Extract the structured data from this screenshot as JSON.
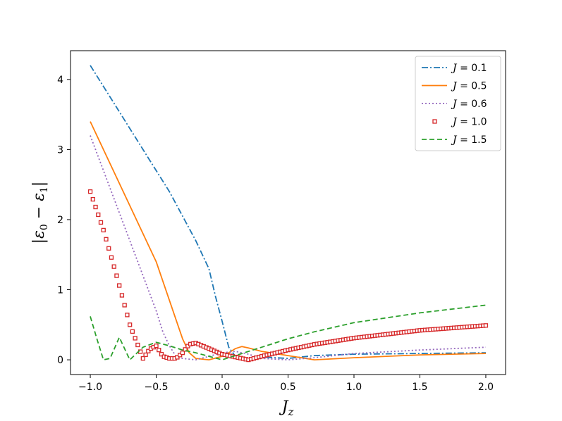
{
  "chart_data": {
    "type": "line",
    "xlabel": "J_z",
    "ylabel": "|ε0 − ε1|",
    "xlim": [
      -1.15,
      2.15
    ],
    "ylim": [
      -0.21,
      4.41
    ],
    "xticks": [
      -1.0,
      -0.5,
      0.0,
      0.5,
      1.0,
      1.5,
      2.0
    ],
    "xtick_labels": [
      "−1.0",
      "−0.5",
      "0.0",
      "0.5",
      "1.0",
      "1.5",
      "2.0"
    ],
    "yticks": [
      0,
      1,
      2,
      3,
      4
    ],
    "ytick_labels": [
      "0",
      "1",
      "2",
      "3",
      "4"
    ],
    "grid": false,
    "legend_position": "top-right",
    "series": [
      {
        "name": "J = 0.1",
        "legend_var": "J",
        "legend_value": "0.1",
        "color": "#1f77b4",
        "style": "dashdot",
        "x": [
          -1.0,
          -0.8,
          -0.6,
          -0.4,
          -0.2,
          -0.1,
          -0.05,
          0.0,
          0.05,
          0.1,
          0.2,
          0.3,
          0.5,
          0.7,
          1.0,
          1.5,
          2.0
        ],
        "y": [
          4.2,
          3.6,
          3.0,
          2.4,
          1.7,
          1.3,
          0.9,
          0.55,
          0.18,
          0.05,
          0.0,
          0.04,
          0.02,
          0.06,
          0.08,
          0.09,
          0.1
        ]
      },
      {
        "name": "J = 0.5",
        "legend_var": "J",
        "legend_value": "0.5",
        "color": "#ff7f0e",
        "style": "solid",
        "x": [
          -1.0,
          -0.5,
          -0.3,
          -0.25,
          -0.2,
          -0.1,
          0.0,
          0.05,
          0.1,
          0.15,
          0.2,
          0.3,
          0.5,
          0.7,
          1.0,
          1.5,
          2.0
        ],
        "y": [
          3.4,
          1.4,
          0.3,
          0.1,
          0.02,
          0.0,
          0.05,
          0.1,
          0.16,
          0.19,
          0.17,
          0.12,
          0.06,
          0.0,
          0.03,
          0.07,
          0.09
        ]
      },
      {
        "name": "J = 0.6",
        "legend_var": "J",
        "legend_value": "0.6",
        "color": "#9467bd",
        "style": "dotted",
        "x": [
          -1.0,
          -0.8,
          -0.6,
          -0.5,
          -0.45,
          -0.4,
          -0.35,
          -0.3,
          -0.2,
          -0.1,
          0.0,
          0.1,
          0.2,
          0.3,
          0.5,
          0.7,
          1.0,
          1.5,
          2.0
        ],
        "y": [
          3.2,
          2.2,
          1.2,
          0.7,
          0.4,
          0.2,
          0.05,
          0.02,
          0.0,
          0.05,
          0.1,
          0.12,
          0.08,
          0.02,
          0.0,
          0.03,
          0.09,
          0.14,
          0.18
        ]
      },
      {
        "name": "J = 1.0",
        "legend_var": "J",
        "legend_value": "1.0",
        "color": "#d62728",
        "style": "squares",
        "x": [
          -1.0,
          -0.9,
          -0.8,
          -0.7,
          -0.6,
          -0.55,
          -0.5,
          -0.45,
          -0.4,
          -0.35,
          -0.3,
          -0.25,
          -0.2,
          -0.1,
          0.0,
          0.1,
          0.2,
          0.3,
          0.5,
          0.7,
          1.0,
          1.5,
          2.0
        ],
        "y": [
          2.4,
          1.85,
          1.2,
          0.5,
          0.02,
          0.15,
          0.2,
          0.05,
          0.02,
          0.02,
          0.1,
          0.22,
          0.24,
          0.16,
          0.08,
          0.04,
          0.0,
          0.05,
          0.14,
          0.22,
          0.31,
          0.42,
          0.49
        ]
      },
      {
        "name": "J = 1.5",
        "legend_var": "J",
        "legend_value": "1.5",
        "color": "#2ca02c",
        "style": "dashed",
        "x": [
          -1.0,
          -0.95,
          -0.9,
          -0.85,
          -0.78,
          -0.7,
          -0.6,
          -0.5,
          -0.4,
          -0.3,
          -0.2,
          -0.1,
          0.0,
          0.1,
          0.3,
          0.5,
          0.7,
          1.0,
          1.5,
          2.0
        ],
        "y": [
          0.62,
          0.3,
          0.0,
          0.02,
          0.32,
          0.0,
          0.18,
          0.25,
          0.2,
          0.14,
          0.1,
          0.05,
          0.0,
          0.06,
          0.18,
          0.3,
          0.4,
          0.53,
          0.67,
          0.78
        ]
      }
    ]
  }
}
